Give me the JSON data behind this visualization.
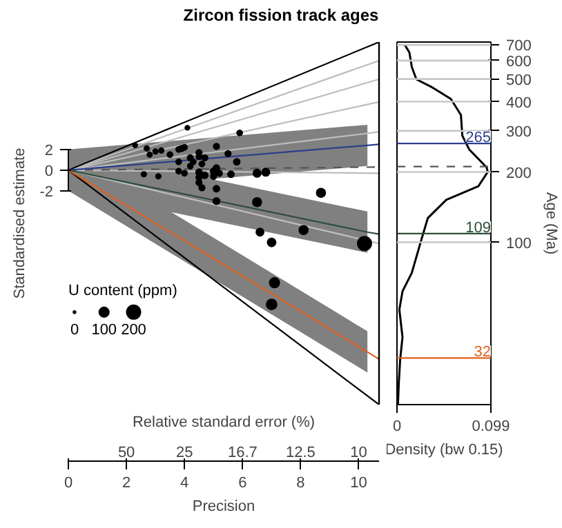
{
  "chart_data": [
    {
      "type": "bubble",
      "title": "Zircon fission track ages",
      "xlabel": "Precision",
      "ylabel": "Standardised estimate",
      "legend_title": "U content (ppm)",
      "size_legend": [
        0,
        100,
        200
      ],
      "annotations": [
        "Relative standard error (%)",
        "50",
        "25",
        "16.7",
        "12.5",
        "10"
      ],
      "xlim": [
        0,
        10.7
      ],
      "xticks": [
        0,
        2,
        4,
        6,
        8,
        10
      ],
      "ylim": [
        -22.7,
        12.4
      ],
      "yticks": [
        -2,
        0,
        2
      ],
      "grid": false,
      "series": [
        {
          "type": "line",
          "color": "#bdbdbd",
          "x": [
            0,
            10.7
          ],
          "values": [
            0,
            -7.1
          ]
        },
        {
          "type": "line",
          "color": "#bdbdbd",
          "x": [
            0,
            10.7
          ],
          "values": [
            0,
            -0.3
          ]
        },
        {
          "type": "line",
          "color": "#bdbdbd",
          "x": [
            0,
            10.7
          ],
          "values": [
            0,
            3.7
          ]
        },
        {
          "type": "line",
          "color": "#bdbdbd",
          "x": [
            0,
            10.7
          ],
          "values": [
            0,
            6.6
          ]
        },
        {
          "type": "line",
          "color": "#bdbdbd",
          "x": [
            0,
            10.7
          ],
          "values": [
            0,
            8.8
          ]
        },
        {
          "type": "line",
          "color": "#bdbdbd",
          "x": [
            0,
            10.7
          ],
          "values": [
            0,
            10.6
          ]
        },
        {
          "type": "line",
          "color": "#000000",
          "x": [
            0,
            10.7
          ],
          "values": [
            0,
            12.4
          ]
        },
        {
          "type": "line",
          "color": "#000000",
          "x": [
            0,
            10.7
          ],
          "values": [
            0,
            -22.7
          ]
        },
        {
          "type": "line",
          "color": "#555555",
          "line_style": "dashed",
          "x": [
            0,
            10.7
          ],
          "values": [
            0,
            0.3
          ]
        },
        {
          "type": "line",
          "color": "#2b3f8c",
          "x": [
            0,
            10.3,
            10.7
          ],
          "values": [
            0,
            2.4,
            2.5
          ],
          "lower": [
            -2,
            0.4,
            null
          ],
          "upper": [
            2,
            4.4,
            null
          ]
        },
        {
          "type": "line",
          "color": "#2e4d3a",
          "x": [
            0,
            10.3,
            10.7
          ],
          "values": [
            0,
            -6,
            -6.2
          ],
          "lower": [
            -2,
            -8,
            null
          ],
          "upper": [
            2,
            -4,
            null
          ]
        },
        {
          "type": "line",
          "color": "#e0601c",
          "x": [
            0,
            10.3,
            10.7
          ],
          "values": [
            0,
            -17.6,
            -18.3
          ],
          "lower": [
            -2,
            -19.6,
            null
          ],
          "upper": [
            2,
            -15.6,
            null
          ]
        },
        {
          "type": "bubble",
          "color": "#000000",
          "x": [
            2.3,
            4.1,
            5.9,
            2.7,
            3,
            3.2,
            2.8,
            2.6,
            3.1,
            3.5,
            3.8,
            3.9,
            4,
            3.8,
            4.2,
            4.3,
            4.5,
            4.5,
            4.7,
            5.1,
            5.5,
            4.6,
            4.2,
            3.8,
            4,
            4.5,
            4.5,
            4.5,
            4.7,
            5,
            5.1,
            5.2,
            5,
            5.8,
            5.6,
            4.6,
            5.1,
            5.1,
            6.5,
            6.8,
            6.5,
            6.6,
            7,
            8.7,
            8.1,
            10.2,
            7.1,
            7
          ],
          "values": [
            2.4,
            4.1,
            3.6,
            2.1,
            1.8,
            1.9,
            1.5,
            -0.4,
            -0.6,
            1.5,
            2,
            2.1,
            2.2,
            0.8,
            1.2,
            0.8,
            1.7,
            1.3,
            1.2,
            2.3,
            1.6,
            0.6,
            0.4,
            -0.1,
            -0.3,
            -0.2,
            -0.7,
            -1.2,
            -0.5,
            -0.1,
            0.2,
            -0.3,
            -0.6,
            0.8,
            -0.4,
            -1.7,
            -1.8,
            -3,
            -0.3,
            -0.2,
            -3.1,
            -6,
            -7,
            -2.2,
            -5.8,
            -7.1,
            -10.9,
            -13
          ],
          "sizes": [
            20,
            20,
            30,
            25,
            25,
            25,
            25,
            25,
            25,
            30,
            30,
            35,
            30,
            30,
            35,
            30,
            35,
            30,
            35,
            35,
            35,
            30,
            30,
            30,
            30,
            40,
            35,
            35,
            40,
            40,
            40,
            35,
            35,
            40,
            40,
            35,
            40,
            45,
            60,
            60,
            80,
            60,
            70,
            80,
            80,
            200,
            100,
            110
          ]
        }
      ]
    },
    {
      "type": "line",
      "xlabel": "Density (bw 0.15)",
      "ylabel": "Age (Ma)",
      "log": "y",
      "grid": "y",
      "xlim": [
        0,
        0.099
      ],
      "xticks": [
        0,
        0.099
      ],
      "ylim": [
        20.2,
        720
      ],
      "yticks": [
        100,
        200,
        300,
        400,
        500,
        600,
        700
      ],
      "ref_lines": [
        {
          "axis": "y",
          "value": 265,
          "label": "265",
          "color": "#2b3f8c"
        },
        {
          "axis": "y",
          "value": 109,
          "label": "109",
          "color": "#2e4d3a"
        },
        {
          "axis": "y",
          "value": 32,
          "label": "32",
          "color": "#e0601c"
        },
        {
          "axis": "y",
          "value": 211,
          "color": "#555555",
          "line_style": "dashed"
        }
      ],
      "series": [
        {
          "color": "#000000",
          "x": [
            0.0083,
            0.0131,
            0.0156,
            0.0204,
            0.0374,
            0.0568,
            0.0674,
            0.0689,
            0.0761,
            0.0946,
            0.0956,
            0.0859,
            0.052,
            0.0325,
            0.0252,
            0.0156,
            0.0058,
            0.0025,
            0.0058,
            0.0033,
            0.0019,
            0.001
          ],
          "values": [
            700,
            649,
            564,
            499,
            460,
            411,
            351,
            286,
            250,
            209,
            200,
            174,
            152,
            127,
            101,
            74,
            61.7,
            51.5,
            39.3,
            31.3,
            25,
            20.2
          ]
        }
      ]
    }
  ]
}
